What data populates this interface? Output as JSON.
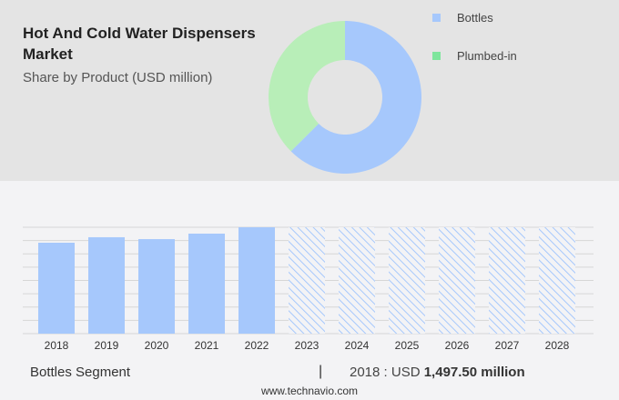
{
  "title": "Hot And Cold Water Dispensers Market",
  "subtitle": "Share by Product (USD million)",
  "legend": [
    {
      "label": "Bottles",
      "color": "#a6c8fc"
    },
    {
      "label": "Plumbed-in",
      "color": "#7ee59c"
    }
  ],
  "footer": {
    "segment": "Bottles Segment",
    "separator": "|",
    "year_prefix": "2018 : USD ",
    "value": "1,497.50 million",
    "site": "www.technavio.com"
  },
  "chart_data": [
    {
      "type": "pie",
      "style": "donut",
      "categories": [
        "Bottles",
        "Plumbed-in"
      ],
      "values": [
        62.5,
        37.5
      ],
      "colors": [
        "#a6c8fc",
        "#b8eeb8"
      ],
      "legend_position": "right"
    },
    {
      "type": "bar",
      "categories": [
        "2018",
        "2019",
        "2020",
        "2021",
        "2022",
        "2023",
        "2024",
        "2025",
        "2026",
        "2027",
        "2028"
      ],
      "values": [
        1497.5,
        1588,
        1557,
        1647,
        1752,
        null,
        null,
        null,
        null,
        null,
        null
      ],
      "forecast_years": [
        "2023",
        "2024",
        "2025",
        "2026",
        "2027",
        "2028"
      ],
      "forecast_style": "hatched",
      "ylim": [
        0,
        1752
      ],
      "grid": true,
      "color": "#a6c8fc",
      "y_tick_labels_shown": false
    }
  ]
}
